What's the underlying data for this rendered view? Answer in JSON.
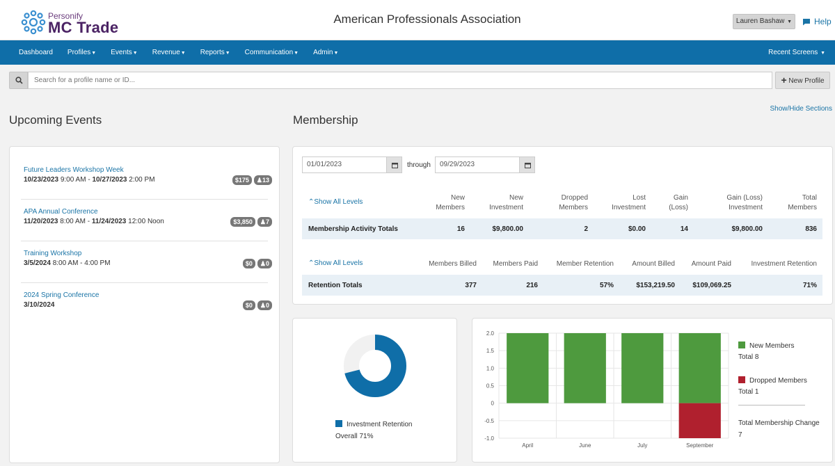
{
  "header": {
    "logo_small": "Personify",
    "logo_big": "MC Trade",
    "org_name": "American Professionals Association",
    "user": "Lauren Bashaw",
    "help": "Help"
  },
  "nav": {
    "items": [
      "Dashboard",
      "Profiles",
      "Events",
      "Revenue",
      "Reports",
      "Communication",
      "Admin"
    ],
    "recent": "Recent Screens"
  },
  "search": {
    "placeholder": "Search for a profile name or ID...",
    "new_profile": "New Profile"
  },
  "show_hide": "Show/Hide Sections",
  "events": {
    "title": "Upcoming Events",
    "items": [
      {
        "name": "Future Leaders Workshop Week",
        "start": "10/23/2023",
        "start_time": "9:00 AM",
        "end": "10/27/2023",
        "end_time": "2:00 PM",
        "price": "$175",
        "count": "13"
      },
      {
        "name": "APA Annual Conference",
        "start": "11/20/2023",
        "start_time": "8:00 AM",
        "end": "11/24/2023",
        "end_time": "12:00 Noon",
        "price": "$3,850",
        "count": "7"
      },
      {
        "name": "Training Workshop",
        "start": "3/5/2024",
        "start_time": "8:00 AM - 4:00 PM",
        "end": "",
        "end_time": "",
        "price": "$0",
        "count": "0"
      },
      {
        "name": "2024 Spring Conference",
        "start": "3/10/2024",
        "start_time": "",
        "end": "",
        "end_time": "",
        "price": "$0",
        "count": "0"
      }
    ]
  },
  "membership": {
    "title": "Membership",
    "from_date": "01/01/2023",
    "through": "through",
    "to_date": "09/29/2023",
    "activity": {
      "show_levels": "Show All Levels",
      "headers": [
        [
          "New",
          "Members"
        ],
        [
          "New",
          "Investment"
        ],
        [
          "Dropped",
          "Members"
        ],
        [
          "Lost",
          "Investment"
        ],
        [
          "Gain",
          "(Loss)"
        ],
        [
          "Gain (Loss)",
          "Investment"
        ],
        [
          "Total",
          "Members"
        ]
      ],
      "row_label": "Membership Activity Totals",
      "values": [
        "16",
        "$9,800.00",
        "2",
        "$0.00",
        "14",
        "$9,800.00",
        "836"
      ]
    },
    "retention": {
      "show_levels": "Show All Levels",
      "headers": [
        "Members Billed",
        "Members Paid",
        "Member Retention",
        "Amount Billed",
        "Amount Paid",
        "Investment Retention"
      ],
      "row_label": "Retention Totals",
      "values": [
        "377",
        "216",
        "57%",
        "$153,219.50",
        "$109,069.25",
        "71%"
      ]
    }
  },
  "donut": {
    "legend": "Investment Retention",
    "overall": "Overall 71%",
    "fraction": 0.71,
    "color": "#0f6ea8"
  },
  "chart_data": {
    "type": "bar",
    "categories": [
      "April",
      "June",
      "July",
      "September"
    ],
    "series": [
      {
        "name": "New Members",
        "values": [
          2.0,
          2.0,
          2.0,
          2.0
        ],
        "color": "#4e9a3e"
      },
      {
        "name": "Dropped Members",
        "values": [
          0,
          0,
          0,
          -1.0
        ],
        "color": "#b0202e"
      }
    ],
    "ylim": [
      -1.0,
      2.0
    ],
    "yticks": [
      "2.0",
      "1.5",
      "1.0",
      "0.5",
      "0",
      "-0.5",
      "-1.0"
    ],
    "legend": {
      "new_label": "New Members",
      "new_total": "Total 8",
      "dropped_label": "Dropped Members",
      "dropped_total": "Total 1",
      "change_label": "Total Membership Change",
      "change_value": "7"
    }
  }
}
